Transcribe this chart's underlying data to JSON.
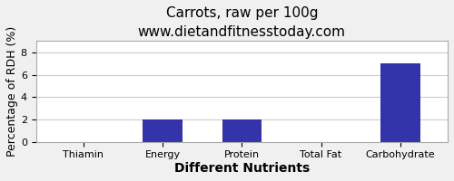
{
  "title": "Carrots, raw per 100g",
  "subtitle": "www.dietandfitnesstoday.com",
  "xlabel": "Different Nutrients",
  "ylabel": "Percentage of RDH (%)",
  "categories": [
    "Thiamin",
    "Energy",
    "Protein",
    "Total Fat",
    "Carbohydrate"
  ],
  "values": [
    0.0,
    2.0,
    2.0,
    0.0,
    7.0
  ],
  "bar_color": "#3333aa",
  "ylim": [
    0,
    9
  ],
  "yticks": [
    0,
    2,
    4,
    6,
    8
  ],
  "background_color": "#f0f0f0",
  "plot_bg_color": "#ffffff",
  "title_fontsize": 11,
  "axis_label_fontsize": 9,
  "tick_fontsize": 8,
  "xlabel_fontsize": 10,
  "xlabel_fontweight": "bold"
}
